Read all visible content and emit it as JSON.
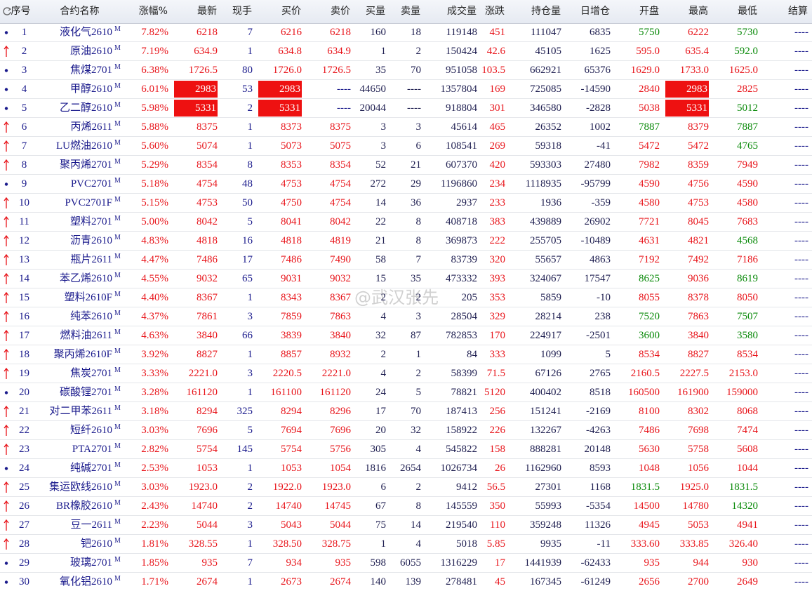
{
  "table": {
    "columns": [
      "序号",
      "合约名称",
      "涨幅%",
      "最新",
      "现手",
      "买价",
      "卖价",
      "买量",
      "卖量",
      "成交量",
      "涨跌",
      "持仓量",
      "日增仓",
      "开盘",
      "最高",
      "最低",
      "结算"
    ],
    "watermark": "@武汉张先",
    "rows": [
      {
        "marker": "dot",
        "tag": "M",
        "limit": false,
        "cells": [
          "1",
          "液化气2610",
          "7.82%",
          "6218",
          "7",
          "6216",
          "6218",
          "160",
          "18",
          "119148",
          "451",
          "111047",
          "6835",
          "5750",
          "6222",
          "5730",
          "----"
        ]
      },
      {
        "marker": "up",
        "tag": "M",
        "limit": false,
        "cells": [
          "2",
          "原油2610",
          "7.19%",
          "634.9",
          "1",
          "634.8",
          "634.9",
          "1",
          "2",
          "150424",
          "42.6",
          "45105",
          "1625",
          "595.0",
          "635.4",
          "592.0",
          "----"
        ]
      },
      {
        "marker": "dot",
        "tag": "M",
        "limit": false,
        "cells": [
          "3",
          "焦煤2701",
          "6.38%",
          "1726.5",
          "80",
          "1726.0",
          "1726.5",
          "35",
          "70",
          "951058",
          "103.5",
          "662921",
          "65376",
          "1629.0",
          "1733.0",
          "1625.0",
          "----"
        ]
      },
      {
        "marker": "dot",
        "tag": "M",
        "limit": true,
        "cells": [
          "4",
          "甲醇2610",
          "6.01%",
          "2983",
          "53",
          "2983",
          "----",
          "44650",
          "----",
          "1357804",
          "169",
          "725085",
          "-14590",
          "2840",
          "2983",
          "2825",
          "----"
        ]
      },
      {
        "marker": "dot",
        "tag": "M",
        "limit": true,
        "cells": [
          "5",
          "乙二醇2610",
          "5.98%",
          "5331",
          "2",
          "5331",
          "----",
          "20044",
          "----",
          "918804",
          "301",
          "346580",
          "-2828",
          "5038",
          "5331",
          "5012",
          "----"
        ]
      },
      {
        "marker": "up",
        "tag": "M",
        "limit": false,
        "cells": [
          "6",
          "丙烯2611",
          "5.88%",
          "8375",
          "1",
          "8373",
          "8375",
          "3",
          "3",
          "45614",
          "465",
          "26352",
          "1002",
          "7887",
          "8379",
          "7887",
          "----"
        ]
      },
      {
        "marker": "up",
        "tag": "M",
        "limit": false,
        "cells": [
          "7",
          "LU燃油2610",
          "5.60%",
          "5074",
          "1",
          "5073",
          "5075",
          "3",
          "6",
          "108541",
          "269",
          "59318",
          "-41",
          "5472",
          "5472",
          "4765",
          "----"
        ]
      },
      {
        "marker": "up",
        "tag": "M",
        "limit": false,
        "cells": [
          "8",
          "聚丙烯2701",
          "5.29%",
          "8354",
          "8",
          "8353",
          "8354",
          "52",
          "21",
          "607370",
          "420",
          "593303",
          "27480",
          "7982",
          "8359",
          "7949",
          "----"
        ]
      },
      {
        "marker": "dot",
        "tag": "M",
        "limit": false,
        "cells": [
          "9",
          "PVC2701",
          "5.18%",
          "4754",
          "48",
          "4753",
          "4754",
          "272",
          "29",
          "1196860",
          "234",
          "1118935",
          "-95799",
          "4590",
          "4756",
          "4590",
          "----"
        ]
      },
      {
        "marker": "up",
        "tag": "M",
        "limit": false,
        "cells": [
          "10",
          "PVC2701F",
          "5.15%",
          "4753",
          "50",
          "4750",
          "4754",
          "14",
          "36",
          "2937",
          "233",
          "1936",
          "-359",
          "4580",
          "4753",
          "4580",
          "----"
        ]
      },
      {
        "marker": "up",
        "tag": "M",
        "limit": false,
        "cells": [
          "11",
          "塑料2701",
          "5.00%",
          "8042",
          "5",
          "8041",
          "8042",
          "22",
          "8",
          "408718",
          "383",
          "439889",
          "26902",
          "7721",
          "8045",
          "7683",
          "----"
        ]
      },
      {
        "marker": "up",
        "tag": "M",
        "limit": false,
        "cells": [
          "12",
          "沥青2610",
          "4.83%",
          "4818",
          "16",
          "4818",
          "4819",
          "21",
          "8",
          "369873",
          "222",
          "255705",
          "-10489",
          "4631",
          "4821",
          "4568",
          "----"
        ]
      },
      {
        "marker": "up",
        "tag": "M",
        "limit": false,
        "cells": [
          "13",
          "瓶片2611",
          "4.47%",
          "7486",
          "17",
          "7486",
          "7490",
          "58",
          "7",
          "83739",
          "320",
          "55657",
          "4863",
          "7192",
          "7492",
          "7186",
          "----"
        ]
      },
      {
        "marker": "up",
        "tag": "M",
        "limit": false,
        "cells": [
          "14",
          "苯乙烯2610",
          "4.55%",
          "9032",
          "65",
          "9031",
          "9032",
          "15",
          "35",
          "473332",
          "393",
          "324067",
          "17547",
          "8625",
          "9036",
          "8619",
          "----"
        ]
      },
      {
        "marker": "up",
        "tag": "M",
        "limit": false,
        "cells": [
          "15",
          "塑料2610F",
          "4.40%",
          "8367",
          "1",
          "8343",
          "8367",
          "2",
          "2",
          "205",
          "353",
          "5859",
          "-10",
          "8055",
          "8378",
          "8050",
          "----"
        ]
      },
      {
        "marker": "up",
        "tag": "M",
        "limit": false,
        "cells": [
          "16",
          "纯苯2610",
          "4.37%",
          "7861",
          "3",
          "7859",
          "7863",
          "4",
          "3",
          "28504",
          "329",
          "28214",
          "238",
          "7520",
          "7863",
          "7507",
          "----"
        ]
      },
      {
        "marker": "up",
        "tag": "M",
        "limit": false,
        "cells": [
          "17",
          "燃料油2611",
          "4.63%",
          "3840",
          "66",
          "3839",
          "3840",
          "32",
          "87",
          "782853",
          "170",
          "224917",
          "-2501",
          "3600",
          "3840",
          "3580",
          "----"
        ]
      },
      {
        "marker": "up",
        "tag": "M",
        "limit": false,
        "cells": [
          "18",
          "聚丙烯2610F",
          "3.92%",
          "8827",
          "1",
          "8857",
          "8932",
          "2",
          "1",
          "84",
          "333",
          "1099",
          "5",
          "8534",
          "8827",
          "8534",
          "----"
        ]
      },
      {
        "marker": "up",
        "tag": "M",
        "limit": false,
        "cells": [
          "19",
          "焦炭2701",
          "3.33%",
          "2221.0",
          "3",
          "2220.5",
          "2221.0",
          "4",
          "2",
          "58399",
          "71.5",
          "67126",
          "2765",
          "2160.5",
          "2227.5",
          "2153.0",
          "----"
        ]
      },
      {
        "marker": "dot",
        "tag": "M",
        "limit": false,
        "cells": [
          "20",
          "碳酸锂2701",
          "3.28%",
          "161120",
          "1",
          "161100",
          "161120",
          "24",
          "5",
          "78821",
          "5120",
          "400402",
          "8518",
          "160500",
          "161900",
          "159000",
          "----"
        ]
      },
      {
        "marker": "up",
        "tag": "M",
        "limit": false,
        "cells": [
          "21",
          "对二甲苯2611",
          "3.18%",
          "8294",
          "325",
          "8294",
          "8296",
          "17",
          "70",
          "187413",
          "256",
          "151241",
          "-2169",
          "8100",
          "8302",
          "8068",
          "----"
        ]
      },
      {
        "marker": "up",
        "tag": "M",
        "limit": false,
        "cells": [
          "22",
          "短纤2610",
          "3.03%",
          "7696",
          "5",
          "7694",
          "7696",
          "20",
          "32",
          "158922",
          "226",
          "132267",
          "-4263",
          "7486",
          "7698",
          "7474",
          "----"
        ]
      },
      {
        "marker": "up",
        "tag": "M",
        "limit": false,
        "cells": [
          "23",
          "PTA2701",
          "2.82%",
          "5754",
          "145",
          "5754",
          "5756",
          "305",
          "4",
          "545822",
          "158",
          "888281",
          "20148",
          "5630",
          "5758",
          "5608",
          "----"
        ]
      },
      {
        "marker": "dot",
        "tag": "M",
        "limit": false,
        "cells": [
          "24",
          "纯碱2701",
          "2.53%",
          "1053",
          "1",
          "1053",
          "1054",
          "1816",
          "2654",
          "1026734",
          "26",
          "1162960",
          "8593",
          "1048",
          "1056",
          "1044",
          "----"
        ]
      },
      {
        "marker": "up",
        "tag": "M",
        "limit": false,
        "cells": [
          "25",
          "集运欧线2610",
          "3.03%",
          "1923.0",
          "2",
          "1922.0",
          "1923.0",
          "6",
          "2",
          "9412",
          "56.5",
          "27301",
          "1168",
          "1831.5",
          "1925.0",
          "1831.5",
          "----"
        ]
      },
      {
        "marker": "up",
        "tag": "M",
        "limit": false,
        "cells": [
          "26",
          "BR橡胶2610",
          "2.43%",
          "14740",
          "2",
          "14740",
          "14745",
          "67",
          "8",
          "145559",
          "350",
          "55993",
          "-5354",
          "14500",
          "14780",
          "14320",
          "----"
        ]
      },
      {
        "marker": "up",
        "tag": "M",
        "limit": false,
        "cells": [
          "27",
          "豆一2611",
          "2.23%",
          "5044",
          "3",
          "5043",
          "5044",
          "75",
          "14",
          "219540",
          "110",
          "359248",
          "11326",
          "4945",
          "5053",
          "4941",
          "----"
        ]
      },
      {
        "marker": "up",
        "tag": "M",
        "limit": false,
        "cells": [
          "28",
          "钯2610",
          "1.81%",
          "328.55",
          "1",
          "328.50",
          "328.75",
          "1",
          "4",
          "5018",
          "5.85",
          "9935",
          "-11",
          "333.60",
          "333.85",
          "326.40",
          "----"
        ]
      },
      {
        "marker": "dot",
        "tag": "M",
        "limit": false,
        "cells": [
          "29",
          "玻璃2701",
          "1.85%",
          "935",
          "7",
          "934",
          "935",
          "598",
          "6055",
          "1316229",
          "17",
          "1441939",
          "-62433",
          "935",
          "944",
          "930",
          "----"
        ]
      },
      {
        "marker": "dot",
        "tag": "M",
        "limit": false,
        "cells": [
          "30",
          "氧化铝2610",
          "1.71%",
          "2674",
          "1",
          "2673",
          "2674",
          "140",
          "139",
          "278481",
          "45",
          "167345",
          "-61249",
          "2656",
          "2700",
          "2649",
          "----"
        ]
      }
    ]
  }
}
